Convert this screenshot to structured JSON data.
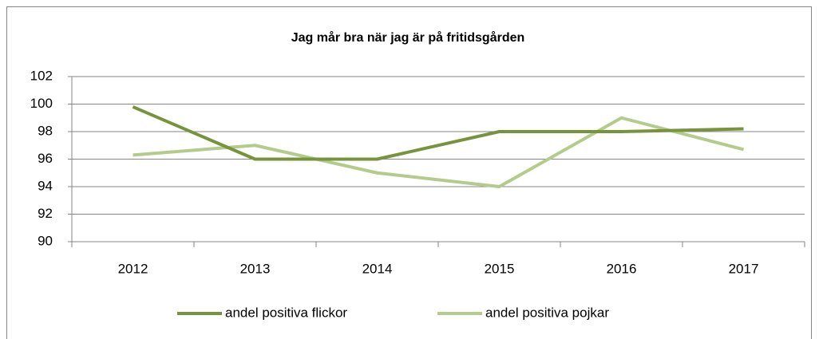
{
  "chart_data": {
    "type": "line",
    "title": "Jag mår bra när jag är på fritidsgården",
    "categories": [
      "2012",
      "2013",
      "2014",
      "2015",
      "2016",
      "2017"
    ],
    "series": [
      {
        "name": "andel positiva flickor",
        "color": "#77933c",
        "values": [
          99.8,
          96,
          96,
          98,
          98,
          98.2
        ]
      },
      {
        "name": "andel positiva pojkar",
        "color": "#b3cb8b",
        "values": [
          96.3,
          97,
          95,
          94,
          99,
          96.7
        ]
      }
    ],
    "ylim": [
      90,
      102
    ],
    "yticks": [
      90,
      92,
      94,
      96,
      98,
      100,
      102
    ],
    "grid": true,
    "legend": "bottom"
  }
}
